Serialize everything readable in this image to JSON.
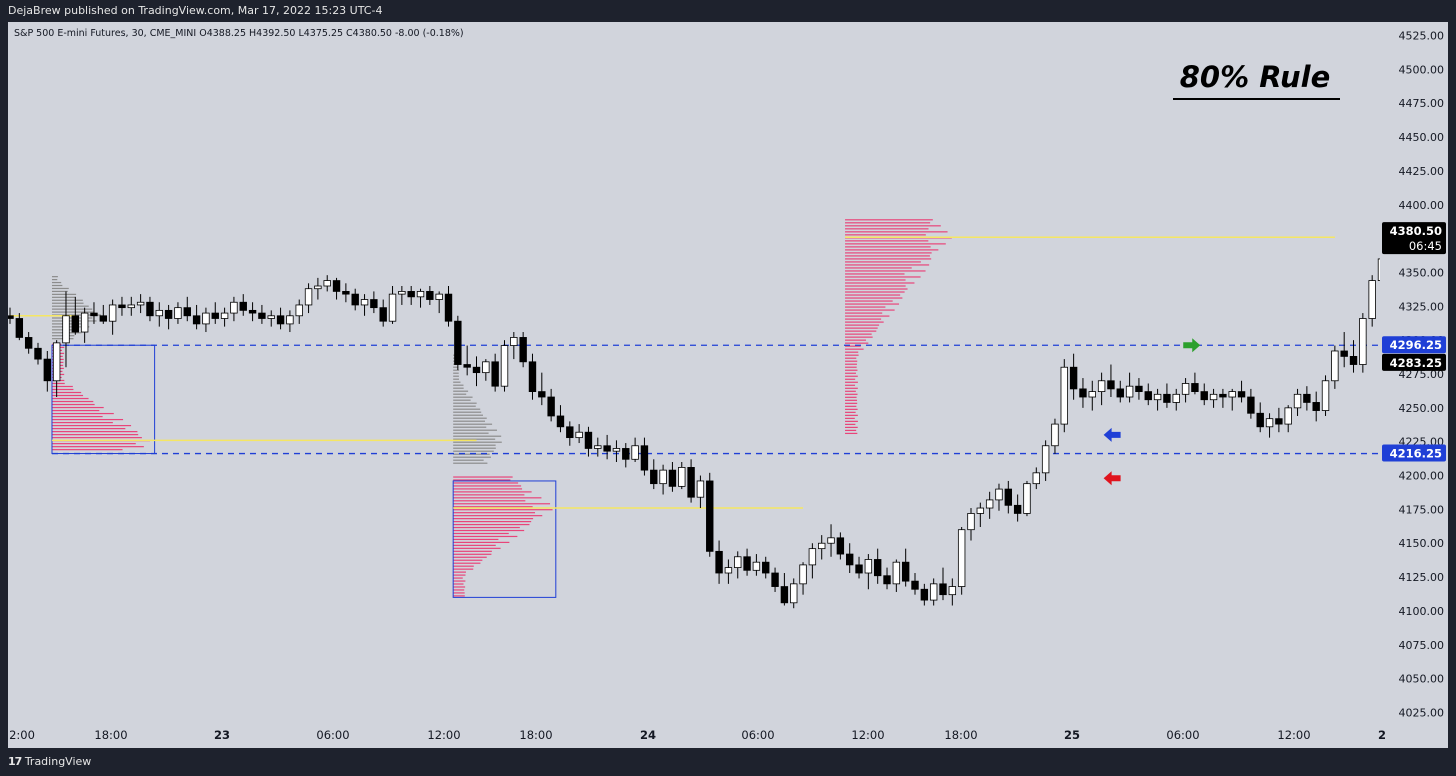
{
  "header": {
    "published": "DejaBrew published on TradingView.com, Mar 17, 2022 15:23 UTC-4"
  },
  "symbol_line": "S&P 500 E-mini Futures, 30, CME_MINI  O4388.25  H4392.50  L4375.25  C4380.50  -8.00 (-0.18%)",
  "annotation": {
    "title": "80% Rule"
  },
  "footer": {
    "brand": "TradingView"
  },
  "colors": {
    "bg": "#d1d4dc",
    "up": "#ffffff",
    "down": "#000000",
    "value_area": "#e8457a",
    "profile_gray": "#8c8c8c",
    "poc": "#f5e663",
    "level": "#1f3fd6",
    "arrow_blue": "#1f3fd6",
    "arrow_red": "#e0141e",
    "arrow_green": "#2ca02c"
  },
  "chart_data": {
    "type": "candlestick",
    "ylim": [
      4015,
      4535
    ],
    "y_ticks": [
      "4525.00",
      "4500.00",
      "4475.00",
      "4450.00",
      "4425.00",
      "4400.00",
      "4375.00",
      "4350.00",
      "4325.00",
      "4300.00",
      "4275.00",
      "4250.00",
      "4225.00",
      "4200.00",
      "4175.00",
      "4150.00",
      "4125.00",
      "4100.00",
      "4075.00",
      "4050.00",
      "4025.00"
    ],
    "x_ticks": [
      "2:00",
      "18:00",
      "23",
      "06:00",
      "12:00",
      "18:00",
      "24",
      "06:00",
      "12:00",
      "18:00",
      "25",
      "06:00",
      "12:00",
      "2"
    ],
    "price_labels": [
      {
        "text": "4380.50",
        "sub": "06:45",
        "value": 4380.5,
        "style": "current"
      },
      {
        "text": "4296.25",
        "value": 4296.25,
        "style": "level"
      },
      {
        "text": "4283.25",
        "value": 4283.25,
        "style": "dark"
      },
      {
        "text": "4216.25",
        "value": 4216.25,
        "style": "level"
      }
    ],
    "levels": [
      4296.25,
      4216.25
    ],
    "candles": [
      [
        4318,
        4324,
        4312,
        4316
      ],
      [
        4316,
        4320,
        4300,
        4302
      ],
      [
        4302,
        4306,
        4290,
        4294
      ],
      [
        4294,
        4298,
        4282,
        4286
      ],
      [
        4286,
        4292,
        4262,
        4270
      ],
      [
        4270,
        4300,
        4258,
        4298
      ],
      [
        4298,
        4336,
        4280,
        4318
      ],
      [
        4318,
        4332,
        4304,
        4306
      ],
      [
        4306,
        4324,
        4298,
        4320
      ],
      [
        4320,
        4328,
        4312,
        4318
      ],
      [
        4318,
        4326,
        4312,
        4314
      ],
      [
        4314,
        4330,
        4304,
        4326
      ],
      [
        4326,
        4332,
        4318,
        4324
      ],
      [
        4324,
        4332,
        4318,
        4326
      ],
      [
        4326,
        4334,
        4320,
        4328
      ],
      [
        4328,
        4332,
        4314,
        4318
      ],
      [
        4318,
        4328,
        4310,
        4322
      ],
      [
        4322,
        4326,
        4308,
        4316
      ],
      [
        4316,
        4328,
        4312,
        4324
      ],
      [
        4324,
        4332,
        4314,
        4318
      ],
      [
        4318,
        4326,
        4308,
        4312
      ],
      [
        4312,
        4324,
        4306,
        4320
      ],
      [
        4320,
        4328,
        4312,
        4316
      ],
      [
        4316,
        4324,
        4310,
        4320
      ],
      [
        4320,
        4332,
        4314,
        4328
      ],
      [
        4328,
        4334,
        4318,
        4322
      ],
      [
        4322,
        4328,
        4314,
        4320
      ],
      [
        4320,
        4326,
        4312,
        4316
      ],
      [
        4316,
        4322,
        4310,
        4318
      ],
      [
        4318,
        4324,
        4308,
        4312
      ],
      [
        4312,
        4322,
        4306,
        4318
      ],
      [
        4318,
        4330,
        4312,
        4326
      ],
      [
        4326,
        4342,
        4320,
        4338
      ],
      [
        4338,
        4346,
        4330,
        4340
      ],
      [
        4340,
        4348,
        4336,
        4344
      ],
      [
        4344,
        4346,
        4330,
        4336
      ],
      [
        4336,
        4342,
        4328,
        4334
      ],
      [
        4334,
        4338,
        4322,
        4326
      ],
      [
        4326,
        4334,
        4318,
        4330
      ],
      [
        4330,
        4336,
        4320,
        4324
      ],
      [
        4324,
        4330,
        4310,
        4314
      ],
      [
        4314,
        4340,
        4312,
        4334
      ],
      [
        4334,
        4340,
        4326,
        4336
      ],
      [
        4336,
        4340,
        4326,
        4332
      ],
      [
        4332,
        4338,
        4324,
        4336
      ],
      [
        4336,
        4340,
        4326,
        4330
      ],
      [
        4330,
        4336,
        4320,
        4334
      ],
      [
        4334,
        4340,
        4310,
        4314
      ],
      [
        4314,
        4318,
        4278,
        4282
      ],
      [
        4282,
        4296,
        4274,
        4280
      ],
      [
        4280,
        4288,
        4266,
        4276
      ],
      [
        4276,
        4286,
        4270,
        4284
      ],
      [
        4284,
        4290,
        4262,
        4266
      ],
      [
        4266,
        4300,
        4262,
        4296
      ],
      [
        4296,
        4306,
        4286,
        4302
      ],
      [
        4302,
        4306,
        4280,
        4284
      ],
      [
        4284,
        4290,
        4256,
        4262
      ],
      [
        4262,
        4276,
        4252,
        4258
      ],
      [
        4258,
        4264,
        4240,
        4244
      ],
      [
        4244,
        4252,
        4232,
        4236
      ],
      [
        4236,
        4240,
        4222,
        4228
      ],
      [
        4228,
        4238,
        4224,
        4232
      ],
      [
        4232,
        4236,
        4214,
        4220
      ],
      [
        4220,
        4228,
        4214,
        4222
      ],
      [
        4222,
        4230,
        4212,
        4218
      ],
      [
        4218,
        4226,
        4210,
        4220
      ],
      [
        4220,
        4224,
        4206,
        4212
      ],
      [
        4212,
        4228,
        4210,
        4222
      ],
      [
        4222,
        4228,
        4200,
        4204
      ],
      [
        4204,
        4212,
        4190,
        4194
      ],
      [
        4194,
        4208,
        4186,
        4204
      ],
      [
        4204,
        4210,
        4188,
        4192
      ],
      [
        4192,
        4210,
        4190,
        4206
      ],
      [
        4206,
        4212,
        4180,
        4184
      ],
      [
        4184,
        4200,
        4176,
        4196
      ],
      [
        4196,
        4202,
        4140,
        4144
      ],
      [
        4144,
        4152,
        4120,
        4128
      ],
      [
        4128,
        4138,
        4120,
        4132
      ],
      [
        4132,
        4144,
        4124,
        4140
      ],
      [
        4140,
        4146,
        4126,
        4130
      ],
      [
        4130,
        4142,
        4126,
        4136
      ],
      [
        4136,
        4140,
        4124,
        4128
      ],
      [
        4128,
        4132,
        4114,
        4118
      ],
      [
        4118,
        4128,
        4104,
        4106
      ],
      [
        4106,
        4124,
        4102,
        4120
      ],
      [
        4120,
        4136,
        4112,
        4134
      ],
      [
        4134,
        4150,
        4124,
        4146
      ],
      [
        4146,
        4156,
        4138,
        4150
      ],
      [
        4150,
        4164,
        4140,
        4154
      ],
      [
        4154,
        4158,
        4138,
        4142
      ],
      [
        4142,
        4150,
        4128,
        4134
      ],
      [
        4134,
        4140,
        4124,
        4128
      ],
      [
        4128,
        4142,
        4116,
        4138
      ],
      [
        4138,
        4146,
        4120,
        4126
      ],
      [
        4126,
        4132,
        4116,
        4120
      ],
      [
        4120,
        4138,
        4114,
        4136
      ],
      [
        4136,
        4146,
        4118,
        4122
      ],
      [
        4122,
        4128,
        4112,
        4116
      ],
      [
        4116,
        4120,
        4104,
        4108
      ],
      [
        4108,
        4124,
        4104,
        4120
      ],
      [
        4120,
        4132,
        4108,
        4112
      ],
      [
        4112,
        4124,
        4104,
        4118
      ],
      [
        4118,
        4162,
        4112,
        4160
      ],
      [
        4160,
        4176,
        4152,
        4172
      ],
      [
        4172,
        4180,
        4162,
        4176
      ],
      [
        4176,
        4188,
        4168,
        4182
      ],
      [
        4182,
        4194,
        4174,
        4190
      ],
      [
        4190,
        4196,
        4172,
        4178
      ],
      [
        4178,
        4186,
        4166,
        4172
      ],
      [
        4172,
        4196,
        4170,
        4194
      ],
      [
        4194,
        4206,
        4190,
        4202
      ],
      [
        4202,
        4226,
        4196,
        4222
      ],
      [
        4222,
        4242,
        4216,
        4238
      ],
      [
        4238,
        4286,
        4232,
        4280
      ],
      [
        4280,
        4290,
        4256,
        4264
      ],
      [
        4264,
        4272,
        4250,
        4258
      ],
      [
        4258,
        4270,
        4248,
        4262
      ],
      [
        4262,
        4276,
        4252,
        4270
      ],
      [
        4270,
        4282,
        4258,
        4264
      ],
      [
        4264,
        4270,
        4254,
        4258
      ],
      [
        4258,
        4276,
        4254,
        4266
      ],
      [
        4266,
        4272,
        4256,
        4262
      ],
      [
        4262,
        4268,
        4252,
        4256
      ],
      [
        4256,
        4264,
        4248,
        4260
      ],
      [
        4260,
        4268,
        4250,
        4254
      ],
      [
        4254,
        4264,
        4248,
        4260
      ],
      [
        4260,
        4272,
        4254,
        4268
      ],
      [
        4268,
        4276,
        4260,
        4262
      ],
      [
        4262,
        4268,
        4252,
        4256
      ],
      [
        4256,
        4264,
        4250,
        4260
      ],
      [
        4260,
        4264,
        4250,
        4258
      ],
      [
        4258,
        4264,
        4248,
        4262
      ],
      [
        4262,
        4270,
        4254,
        4258
      ],
      [
        4258,
        4264,
        4242,
        4246
      ],
      [
        4246,
        4254,
        4232,
        4236
      ],
      [
        4236,
        4246,
        4228,
        4242
      ],
      [
        4242,
        4250,
        4232,
        4238
      ],
      [
        4238,
        4252,
        4232,
        4250
      ],
      [
        4250,
        4264,
        4244,
        4260
      ],
      [
        4260,
        4266,
        4248,
        4254
      ],
      [
        4254,
        4262,
        4240,
        4248
      ],
      [
        4248,
        4274,
        4244,
        4270
      ],
      [
        4270,
        4296,
        4264,
        4292
      ],
      [
        4292,
        4306,
        4280,
        4288
      ],
      [
        4288,
        4300,
        4276,
        4282
      ],
      [
        4282,
        4320,
        4276,
        4316
      ],
      [
        4316,
        4348,
        4310,
        4344
      ],
      [
        4344,
        4366,
        4336,
        4360
      ],
      [
        4360,
        4372,
        4352,
        4368
      ],
      [
        4368,
        4378,
        4356,
        4364
      ],
      [
        4364,
        4376,
        4352,
        4370
      ],
      [
        4370,
        4378,
        4360,
        4372
      ],
      [
        4372,
        4382,
        4362,
        4366
      ],
      [
        4366,
        4378,
        4360,
        4374
      ],
      [
        4374,
        4384,
        4364,
        4378
      ],
      [
        4378,
        4392,
        4374,
        4386
      ],
      [
        4386,
        4392,
        4376,
        4382
      ],
      [
        4388,
        4392,
        4375,
        4380.5
      ]
    ],
    "profiles": [
      {
        "x0": 4.5,
        "x1": 15.5,
        "y_low": 4218,
        "y_high": 4298,
        "va_low": 4218,
        "va_high": 4298,
        "poc": 4226,
        "color": "value_area"
      },
      {
        "x0": 4.5,
        "x1": 10,
        "y_low": 4300,
        "y_high": 4348,
        "poc": 4318,
        "color": "profile_gray"
      },
      {
        "x0": 47.5,
        "x1": 58.5,
        "y_low": 4110,
        "y_high": 4200,
        "va_low": 4110,
        "va_high": 4200,
        "poc": 4176,
        "color": "value_area"
      },
      {
        "x0": 47.5,
        "x1": 53,
        "y_low": 4208,
        "y_high": 4290,
        "poc": 4226,
        "color": "profile_gray"
      },
      {
        "x0": 89.5,
        "x1": 101,
        "y_low": 4230,
        "y_high": 4390,
        "va_low": 4300,
        "va_high": 4390,
        "poc": 4376,
        "color": "value_area"
      }
    ],
    "poc_lines": [
      {
        "x0": 0,
        "x1": 7,
        "value": 4318
      },
      {
        "x0": 4.5,
        "x1": 50,
        "value": 4226
      },
      {
        "x0": 47.5,
        "x1": 85,
        "value": 4176
      },
      {
        "x0": 89.5,
        "x1": 142,
        "value": 4376
      }
    ],
    "boxes": [
      {
        "x0": 4.5,
        "x1": 15.5,
        "y_low": 4216.25,
        "y_high": 4296.25
      },
      {
        "x0": 47.5,
        "x1": 58.5,
        "y_low": 4110,
        "y_high": 4196
      }
    ],
    "arrows": [
      {
        "idx": 117,
        "value": 4230,
        "color": "arrow_blue",
        "dir": "left"
      },
      {
        "idx": 117,
        "value": 4198,
        "color": "arrow_red",
        "dir": "left"
      },
      {
        "idx": 128,
        "value": 4296.25,
        "color": "arrow_green",
        "dir": "right"
      }
    ]
  }
}
